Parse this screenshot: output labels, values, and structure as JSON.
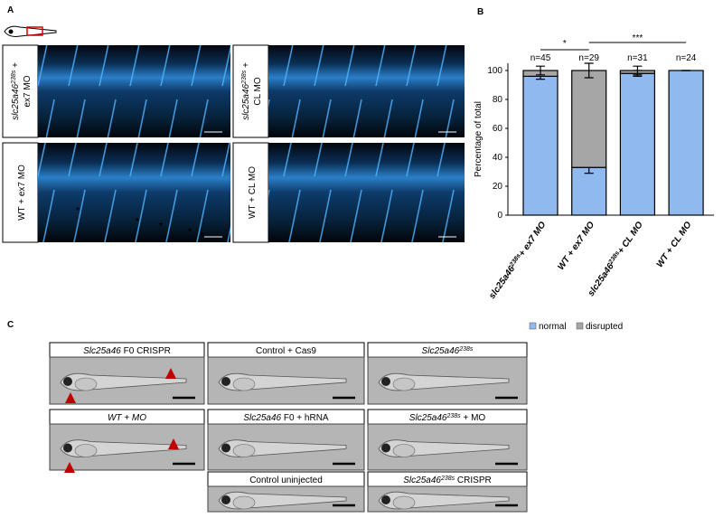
{
  "panel_labels": [
    "A",
    "B",
    "C"
  ],
  "panel_a": {
    "labels": [
      {
        "main": "slc25a46",
        "sup": "238s",
        "rest": " +",
        "line2": "ex7 MO"
      },
      {
        "main": "slc25a46",
        "sup": "238s",
        "rest": " +",
        "line2": "CL MO"
      },
      {
        "main": "WT + ex7 MO"
      },
      {
        "main": "WT + CL MO"
      }
    ],
    "asterisks": [
      "*",
      "*",
      "*",
      "*",
      "*"
    ]
  },
  "chart_data": {
    "type": "stacked_bar",
    "categories": [
      {
        "main": "slc25a46",
        "sup": "238s",
        "rest": "+ ex7 MO"
      },
      {
        "main": "WT + ex7 MO"
      },
      {
        "main": "slc25a46",
        "sup": "238s",
        "rest": "+ CL MO"
      },
      {
        "main": "WT + CL MO"
      }
    ],
    "series": [
      {
        "name": "normal",
        "color": "#8fb9ef",
        "values": [
          96,
          33,
          98,
          100
        ],
        "errors": [
          2,
          4,
          2,
          0
        ]
      },
      {
        "name": "disrupted",
        "color": "#a6a6a6",
        "values": [
          4,
          67,
          2,
          0
        ],
        "errors": [
          3,
          5,
          3,
          0
        ]
      }
    ],
    "y_label": "Percentage of total",
    "ylim": [
      0,
      105
    ],
    "yticks": [
      0,
      20,
      40,
      60,
      80,
      100
    ],
    "n_labels": [
      "n=45",
      "n=29",
      "n=31",
      "n=24"
    ],
    "significance": [
      "*",
      "***"
    ],
    "legend": "right"
  },
  "panel_c": {
    "labels": [
      {
        "main": "Slc25a46",
        "rest": " F0 CRISPR"
      },
      {
        "plain": "Control + Cas9"
      },
      {
        "main": "Slc25a46",
        "sup": "238s"
      },
      {
        "main": "WT + MO"
      },
      {
        "main": "Slc25a46",
        "rest": "  F0 + hRNA"
      },
      {
        "main": "Slc25a46",
        "sup": "238s",
        "rest": "   + MO"
      },
      {
        "plain": "Control uninjected"
      },
      {
        "main": "Slc25a46",
        "sup": "238s",
        "rest": "  CRISPR"
      }
    ]
  }
}
